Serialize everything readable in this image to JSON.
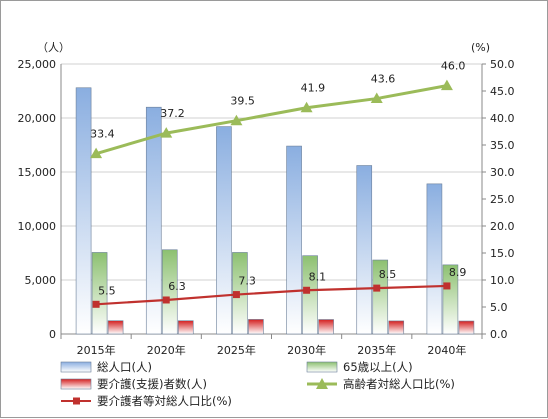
{
  "chart_data": {
    "type": "bar",
    "categories": [
      "2015年",
      "2020年",
      "2025年",
      "2030年",
      "2035年",
      "2040年"
    ],
    "y_left": {
      "unit": "（人）",
      "min": 0,
      "max": 25000,
      "step": 5000,
      "tick_labels": [
        "0",
        "5,000",
        "10,000",
        "15,000",
        "20,000",
        "25,000"
      ]
    },
    "y_right": {
      "unit": "(%)",
      "min": 0,
      "max": 50,
      "step": 5,
      "tick_labels": [
        "0.0",
        "5.0",
        "10.0",
        "15.0",
        "20.0",
        "25.0",
        "30.0",
        "35.0",
        "40.0",
        "45.0",
        "50.0"
      ]
    },
    "gridlines": true,
    "legend_position": "bottom",
    "series": [
      {
        "name": "総人口(人)",
        "kind": "bar",
        "axis": "left",
        "color": "#8aaee0",
        "values": [
          22800,
          21000,
          19200,
          17400,
          15600,
          13900
        ]
      },
      {
        "name": "65歳以上(人)",
        "kind": "bar",
        "axis": "left",
        "color": "#8cc070",
        "values": [
          7550,
          7800,
          7550,
          7250,
          6850,
          6400
        ]
      },
      {
        "name": "要介護(支援)者数(人)",
        "kind": "bar",
        "axis": "left",
        "color": "#d42020",
        "values": [
          1230,
          1230,
          1350,
          1340,
          1210,
          1200
        ]
      },
      {
        "name": "高齢者対総人口比(%)",
        "kind": "line",
        "axis": "right",
        "color": "#9bbb59",
        "marker": "triangle",
        "values": [
          33.4,
          37.2,
          39.5,
          41.9,
          43.6,
          46.0
        ],
        "labels": [
          "33.4",
          "37.2",
          "39.5",
          "41.9",
          "43.6",
          "46.0"
        ]
      },
      {
        "name": "要介護者等対総人口比(%)",
        "kind": "line",
        "axis": "right",
        "color": "#c0312e",
        "marker": "square",
        "values": [
          5.5,
          6.3,
          7.3,
          8.1,
          8.5,
          8.9
        ],
        "labels": [
          "5.5",
          "6.3",
          "7.3",
          "8.1",
          "8.5",
          "8.9"
        ]
      }
    ]
  }
}
